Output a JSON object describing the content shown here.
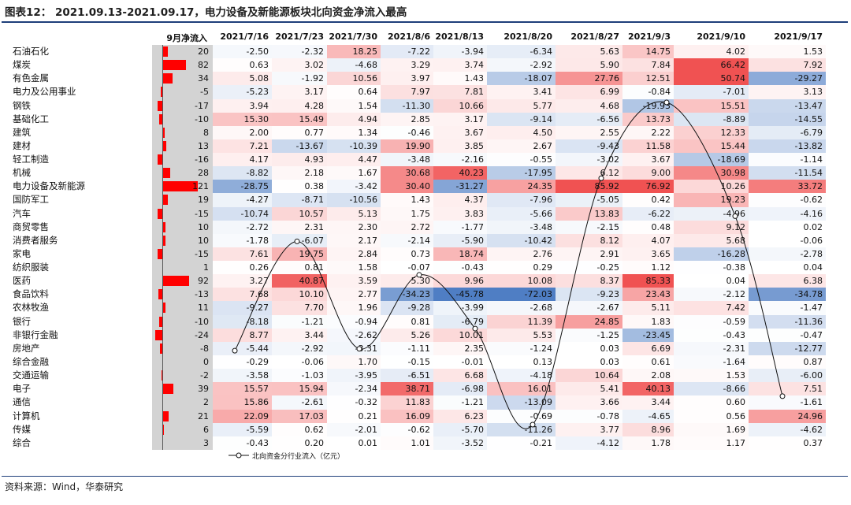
{
  "title": "图表12：  2021.09.13-2021.09.17，电力设备及新能源板块北向资金净流入最高",
  "source": "资料来源：Wind，华泰研究",
  "colors": {
    "pos": "#f05252",
    "neg": "#4f7ec4",
    "grey": "#d3d3d3",
    "line": "#111111",
    "bar": "#ff0000"
  },
  "chart_data": {
    "type": "table",
    "sept_header": "9月净流入",
    "dates": [
      "2021/7/16",
      "2021/7/23",
      "2021/7/30",
      "2021/8/6",
      "2021/8/13",
      "2021/8/20",
      "2021/8/27",
      "2021/9/3",
      "2021/9/10",
      "2021/9/17"
    ],
    "rows": [
      {
        "sector": "石油石化",
        "sep": 20,
        "values": [
          -2.5,
          -2.32,
          18.25,
          -7.22,
          -3.94,
          -6.34,
          5.63,
          14.75,
          4.02,
          1.53
        ]
      },
      {
        "sector": "煤炭",
        "sep": 82,
        "values": [
          0.63,
          3.02,
          -4.68,
          3.29,
          3.74,
          -2.92,
          5.9,
          7.84,
          66.42,
          7.92
        ]
      },
      {
        "sector": "有色金属",
        "sep": 34,
        "values": [
          5.08,
          -1.92,
          10.56,
          3.97,
          1.43,
          -18.07,
          27.76,
          12.51,
          50.74,
          -29.27
        ]
      },
      {
        "sector": "电力及公用事业",
        "sep": -5,
        "values": [
          -5.23,
          3.17,
          0.64,
          7.97,
          7.81,
          3.41,
          6.99,
          -0.84,
          -7.01,
          3.13
        ]
      },
      {
        "sector": "钢铁",
        "sep": -17,
        "values": [
          3.94,
          4.28,
          1.54,
          -11.3,
          10.66,
          5.77,
          4.68,
          -19.93,
          15.51,
          -13.47
        ]
      },
      {
        "sector": "基础化工",
        "sep": -10,
        "values": [
          15.3,
          15.49,
          4.94,
          2.85,
          3.17,
          -9.14,
          -6.56,
          13.73,
          -8.89,
          -14.55
        ]
      },
      {
        "sector": "建筑",
        "sep": 8,
        "values": [
          2.0,
          0.77,
          1.34,
          -0.46,
          3.67,
          4.5,
          2.55,
          2.22,
          12.33,
          -6.79
        ]
      },
      {
        "sector": "建材",
        "sep": 13,
        "values": [
          7.21,
          -13.67,
          -10.39,
          19.9,
          3.85,
          2.67,
          -9.43,
          11.58,
          15.44,
          -13.82
        ]
      },
      {
        "sector": "轻工制造",
        "sep": -16,
        "values": [
          4.17,
          4.93,
          4.47,
          -3.48,
          -2.16,
          -0.55,
          -3.02,
          3.67,
          -18.69,
          -1.14
        ]
      },
      {
        "sector": "机械",
        "sep": 28,
        "values": [
          -8.82,
          2.18,
          1.67,
          30.68,
          40.23,
          -17.95,
          6.12,
          9.0,
          30.98,
          -11.54
        ]
      },
      {
        "sector": "电力设备及新能源",
        "sep": 121,
        "values": [
          -28.75,
          0.38,
          -3.42,
          30.4,
          -31.27,
          24.35,
          85.92,
          76.92,
          10.26,
          33.72
        ]
      },
      {
        "sector": "国防军工",
        "sep": 19,
        "values": [
          -4.27,
          -8.71,
          -10.56,
          1.43,
          4.37,
          -7.96,
          -5.05,
          0.42,
          19.23,
          -0.62
        ]
      },
      {
        "sector": "汽车",
        "sep": -15,
        "values": [
          -10.74,
          10.57,
          5.13,
          1.75,
          3.83,
          -5.66,
          13.83,
          -6.22,
          -4.96,
          -4.16
        ]
      },
      {
        "sector": "商贸零售",
        "sep": 10,
        "values": [
          -2.72,
          2.31,
          2.3,
          2.72,
          -1.77,
          -3.48,
          -2.15,
          0.48,
          9.12,
          0.02
        ]
      },
      {
        "sector": "消费者服务",
        "sep": 10,
        "values": [
          -1.78,
          -6.07,
          2.17,
          -2.14,
          -5.9,
          -10.42,
          8.12,
          4.07,
          5.68,
          -0.06
        ]
      },
      {
        "sector": "家电",
        "sep": -15,
        "values": [
          7.61,
          19.75,
          2.84,
          0.73,
          18.74,
          2.76,
          2.91,
          3.65,
          -16.28,
          -2.78
        ]
      },
      {
        "sector": "纺织服装",
        "sep": 1,
        "values": [
          0.26,
          0.81,
          1.58,
          -0.07,
          -0.43,
          0.29,
          -0.25,
          1.12,
          -0.38,
          0.04
        ]
      },
      {
        "sector": "医药",
        "sep": 92,
        "values": [
          3.27,
          40.87,
          3.59,
          5.3,
          9.96,
          10.08,
          8.37,
          85.33,
          0.04,
          6.38
        ]
      },
      {
        "sector": "食品饮料",
        "sep": -13,
        "values": [
          7.68,
          10.1,
          2.77,
          -34.23,
          -45.78,
          -72.03,
          -9.23,
          23.43,
          -2.12,
          -34.78
        ]
      },
      {
        "sector": "农林牧渔",
        "sep": 11,
        "values": [
          -9.27,
          7.7,
          1.96,
          -9.28,
          -3.99,
          -2.68,
          -2.67,
          5.11,
          7.42,
          -1.47
        ]
      },
      {
        "sector": "银行",
        "sep": -10,
        "values": [
          -8.18,
          -1.21,
          -0.94,
          0.81,
          -6.79,
          11.39,
          24.85,
          1.83,
          -0.59,
          -11.36
        ]
      },
      {
        "sector": "非银行金融",
        "sep": -24,
        "values": [
          8.77,
          3.44,
          -2.62,
          5.26,
          10.01,
          5.53,
          -1.25,
          -23.45,
          -0.43,
          -0.47
        ]
      },
      {
        "sector": "房地产",
        "sep": -8,
        "values": [
          -5.44,
          -2.92,
          -3.31,
          -1.11,
          2.35,
          -1.24,
          0.03,
          6.69,
          -2.31,
          -12.77
        ]
      },
      {
        "sector": "综合金融",
        "sep": 0,
        "values": [
          -0.29,
          -0.06,
          1.7,
          -0.15,
          -0.01,
          0.13,
          0.03,
          0.61,
          -1.64,
          0.87
        ]
      },
      {
        "sector": "交通运输",
        "sep": -2,
        "values": [
          -3.58,
          -1.03,
          -3.95,
          -6.51,
          6.68,
          -4.18,
          10.64,
          2.08,
          1.53,
          -6.0
        ]
      },
      {
        "sector": "电子",
        "sep": 39,
        "values": [
          15.57,
          15.94,
          -2.34,
          38.71,
          -6.98,
          16.01,
          5.41,
          40.13,
          -8.66,
          7.51
        ]
      },
      {
        "sector": "通信",
        "sep": 2,
        "values": [
          15.86,
          -2.61,
          -0.32,
          11.83,
          -1.21,
          -13.09,
          3.66,
          3.44,
          0.6,
          -1.61
        ]
      },
      {
        "sector": "计算机",
        "sep": 21,
        "values": [
          22.09,
          17.03,
          0.21,
          16.09,
          6.23,
          -0.69,
          -0.78,
          -4.65,
          0.56,
          24.96
        ]
      },
      {
        "sector": "传媒",
        "sep": 6,
        "values": [
          -5.59,
          0.62,
          -2.01,
          -0.62,
          -5.7,
          -11.26,
          3.77,
          8.96,
          1.69,
          -4.62
        ]
      },
      {
        "sector": "综合",
        "sep": 3,
        "values": [
          -0.43,
          0.2,
          0.01,
          1.01,
          -3.52,
          -0.21,
          -4.12,
          1.78,
          1.17,
          0.37
        ]
      }
    ],
    "line_series": {
      "name": "北向资金分行业流入（亿元）",
      "points": [
        {
          "date": "2021/7/16",
          "value": -113
        },
        {
          "date": "2021/7/23",
          "value": 60
        },
        {
          "date": "2021/7/30",
          "value": -110
        },
        {
          "date": "2021/8/6",
          "value": 7
        },
        {
          "date": "2021/8/13",
          "value": -78
        },
        {
          "date": "2021/8/20",
          "value": -230
        },
        {
          "date": "2021/8/27",
          "value": 160
        },
        {
          "date": "2021/9/3",
          "value": 280
        },
        {
          "date": "2021/9/10",
          "value": 100
        },
        {
          "date": "2021/9/17",
          "value": -185
        }
      ]
    }
  }
}
